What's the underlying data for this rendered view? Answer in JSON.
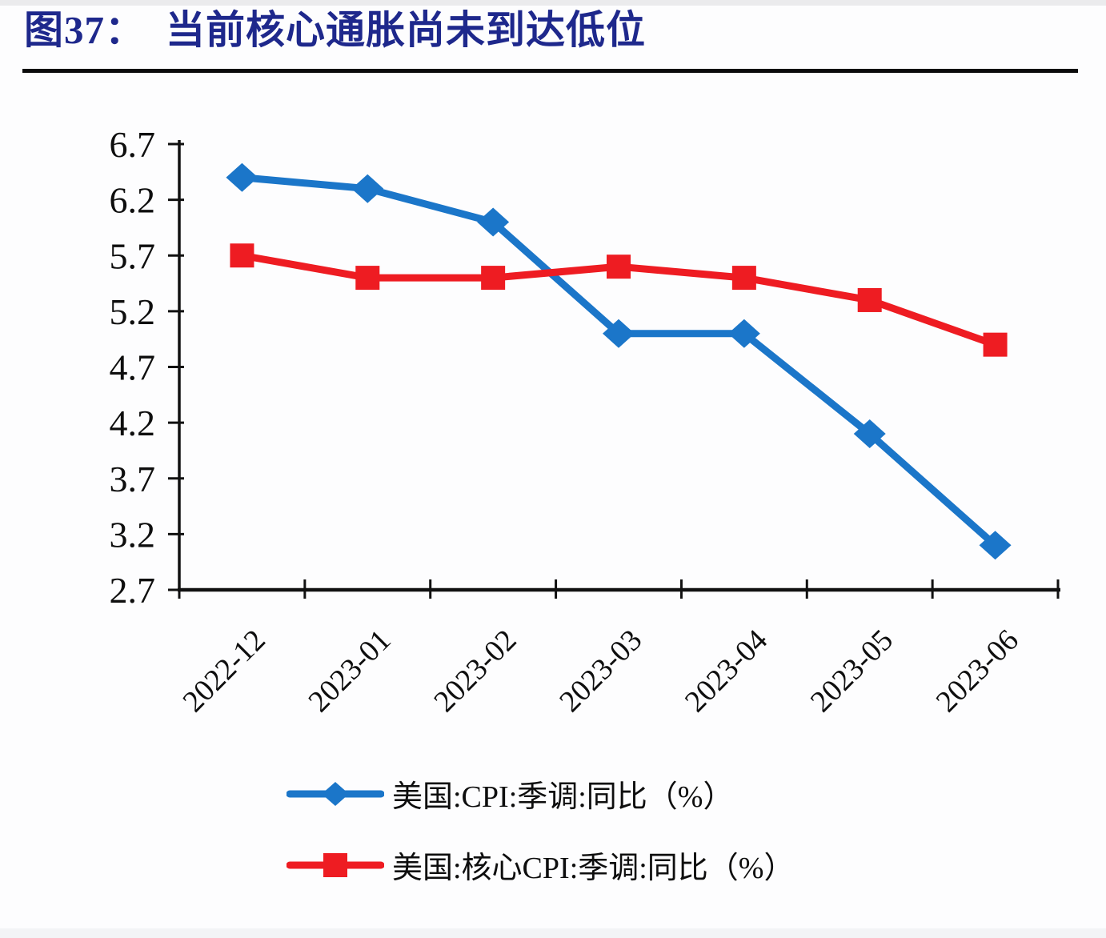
{
  "header": {
    "figure_label": "图37：",
    "title": "当前核心通胀尚未到达低位"
  },
  "chart_data": {
    "type": "line",
    "title": "图37：当前核心通胀尚未到达低位",
    "categories": [
      "2022-12",
      "2023-01",
      "2023-02",
      "2023-03",
      "2023-04",
      "2023-05",
      "2023-06"
    ],
    "series": [
      {
        "name": "美国:CPI:季调:同比（%）",
        "marker": "diamond",
        "color": "#1b76c9",
        "values": [
          6.4,
          6.3,
          6.0,
          5.0,
          5.0,
          4.1,
          3.1
        ]
      },
      {
        "name": "美国:核心CPI:季调:同比（%）",
        "marker": "square",
        "color": "#ee1c22",
        "values": [
          5.7,
          5.5,
          5.5,
          5.6,
          5.5,
          5.3,
          4.9
        ]
      }
    ],
    "y_axis": {
      "min": 2.7,
      "max": 6.7,
      "step": 0.5,
      "tick_labels": [
        "6.7",
        "6.2",
        "5.7",
        "5.2",
        "4.7",
        "4.2",
        "3.7",
        "3.2",
        "2.7"
      ]
    },
    "x_axis": {
      "tick_labels": [
        "2022-12",
        "2023-01",
        "2023-02",
        "2023-03",
        "2023-04",
        "2023-05",
        "2023-06"
      ]
    },
    "legend_position": "bottom",
    "grid": false,
    "axis_color": "#111111",
    "label_color": "#0e0e0e"
  }
}
